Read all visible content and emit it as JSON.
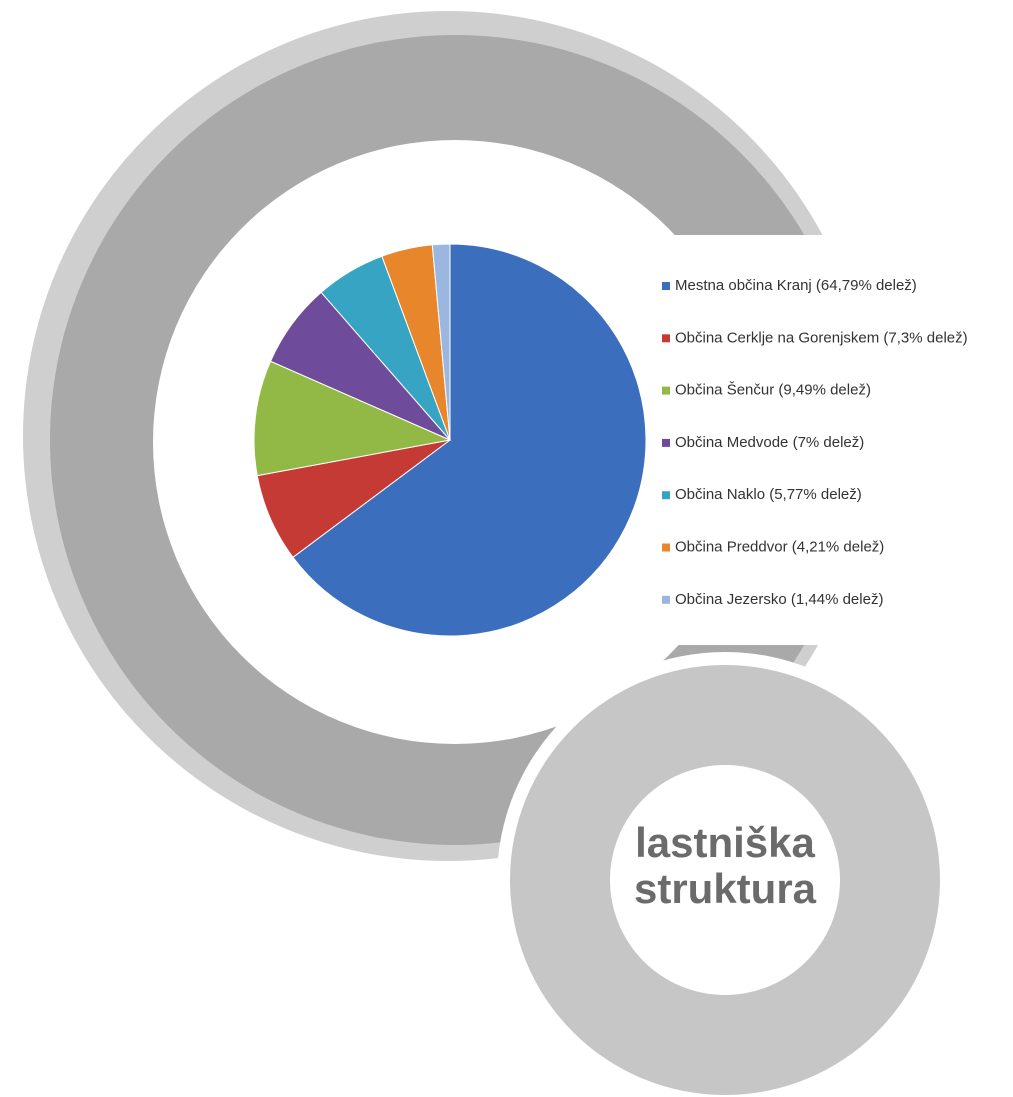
{
  "chart_data": {
    "type": "pie",
    "title": "lastniška struktura",
    "categories": [
      "Mestna občina Kranj (64,79% delež)",
      "Občina Cerklje na Gorenjskem (7,3% delež)",
      "Občina Šenčur (9,49% delež)",
      "Občina Medvode (7% delež)",
      "Občina Naklo (5,77% delež)",
      "Občina Preddvor (4,21% delež)",
      "Občina Jezersko (1,44% delež)"
    ],
    "values": [
      64.79,
      7.3,
      9.49,
      7,
      5.77,
      4.21,
      1.44
    ],
    "colors": [
      "#3b6fbd",
      "#c53a35",
      "#92b846",
      "#6f4b9b",
      "#37a4c3",
      "#e8862c",
      "#9bb7df"
    ],
    "legend": "right"
  }
}
